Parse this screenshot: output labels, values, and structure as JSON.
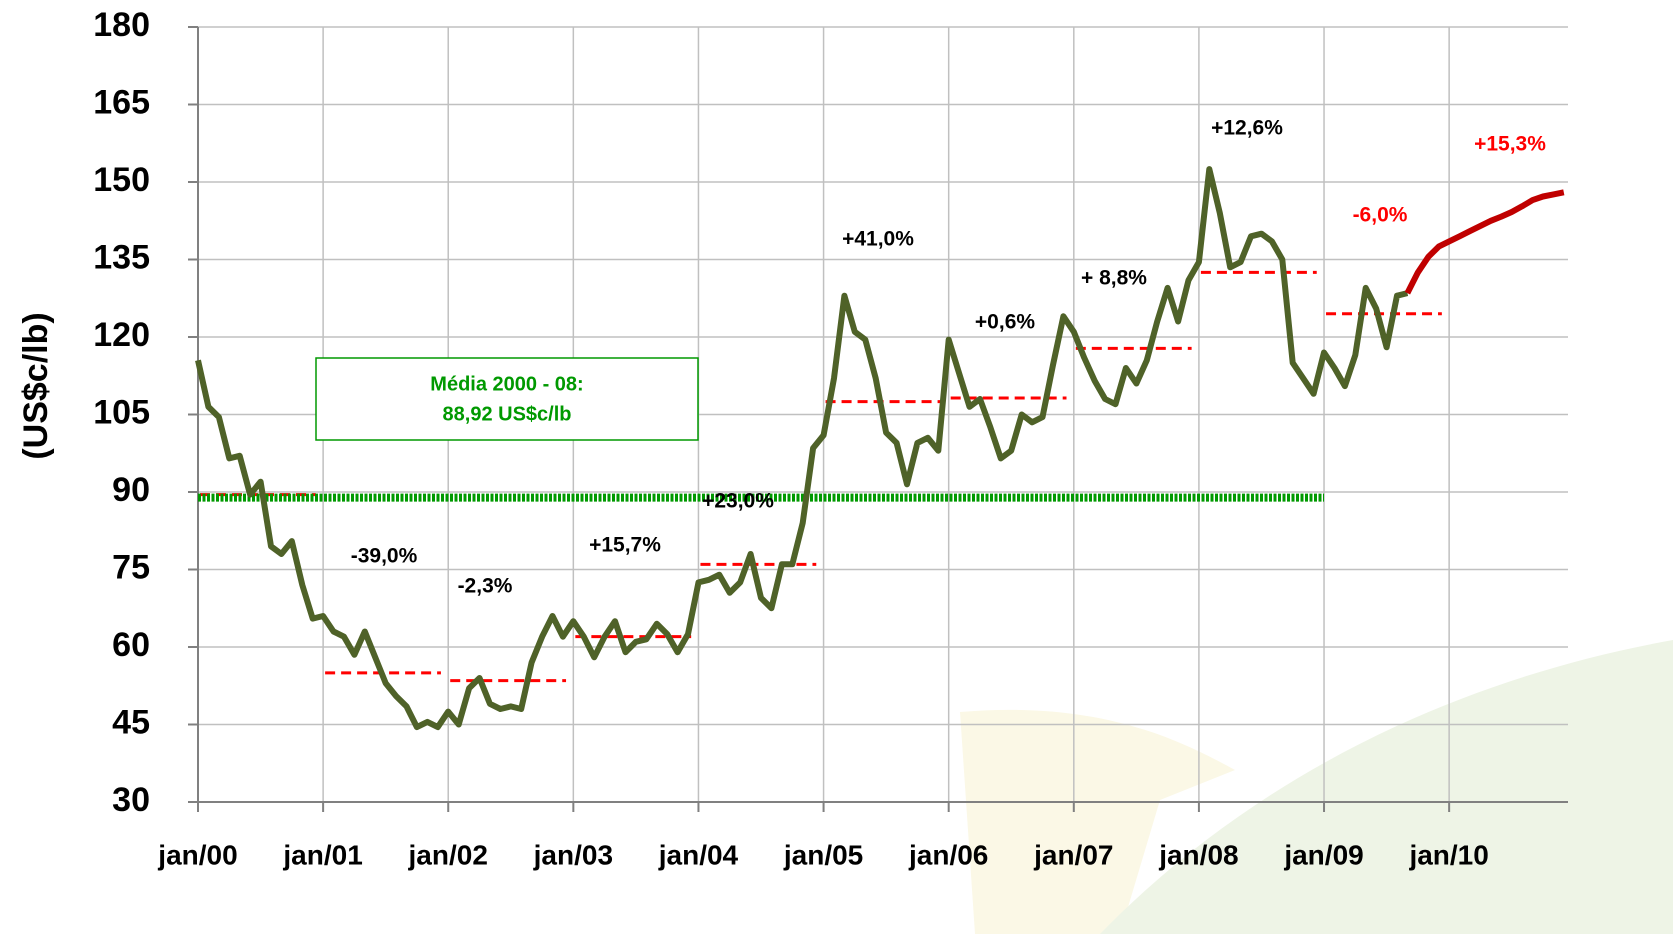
{
  "chart_data": {
    "type": "line",
    "y_label": "(US$c/lb)",
    "xlim": [
      0,
      131.4
    ],
    "ylim": [
      30,
      180
    ],
    "yticks": [
      30,
      45,
      60,
      75,
      90,
      105,
      120,
      135,
      150,
      165,
      180
    ],
    "xticks": [
      {
        "value": 0,
        "label": "jan/00"
      },
      {
        "value": 12,
        "label": "jan/01"
      },
      {
        "value": 24,
        "label": "jan/02"
      },
      {
        "value": 36,
        "label": "jan/03"
      },
      {
        "value": 48,
        "label": "jan/04"
      },
      {
        "value": 60,
        "label": "jan/05"
      },
      {
        "value": 72,
        "label": "jan/06"
      },
      {
        "value": 84,
        "label": "jan/07"
      },
      {
        "value": 96,
        "label": "jan/08"
      },
      {
        "value": 108,
        "label": "jan/09"
      },
      {
        "value": 120,
        "label": "jan/10"
      }
    ],
    "grid": true,
    "series": [
      {
        "color": "#4f6228",
        "x": [
          0,
          1,
          2,
          3,
          4,
          5,
          6,
          7,
          8,
          9,
          10,
          11,
          12,
          13,
          14,
          15,
          16,
          17,
          18,
          19,
          20,
          21,
          22,
          23,
          24,
          25,
          26,
          27,
          28,
          29,
          30,
          31,
          32,
          33,
          34,
          35,
          36,
          37,
          38,
          39,
          40,
          41,
          42,
          43,
          44,
          45,
          46,
          47,
          48,
          49,
          50,
          51,
          52,
          53,
          54,
          55,
          56,
          57,
          58,
          59,
          60,
          61,
          62,
          63,
          64,
          65,
          66,
          67,
          68,
          69,
          70,
          71,
          72,
          73,
          74,
          75,
          76,
          77,
          78,
          79,
          80,
          81,
          82,
          83,
          84,
          85,
          86,
          87,
          88,
          89,
          90,
          91,
          92,
          93,
          94,
          95,
          96,
          97,
          98,
          99,
          100,
          101,
          102,
          103,
          104,
          105,
          106,
          107,
          108,
          109,
          110,
          111,
          112,
          113,
          114,
          115,
          116
        ],
        "values": [
          115.5,
          106.5,
          104.5,
          96.5,
          97,
          89.5,
          92,
          79.5,
          78,
          80.5,
          72,
          65.5,
          66,
          63,
          62,
          58.5,
          63,
          58,
          53,
          50.5,
          48.5,
          44.5,
          45.5,
          44.5,
          47.5,
          45,
          52,
          54,
          49,
          48,
          48.5,
          48,
          57,
          62,
          66,
          62,
          65,
          62,
          58,
          62,
          65,
          59,
          61,
          61.5,
          64.5,
          62.5,
          59,
          62.5,
          72.5,
          73,
          74,
          70.5,
          72.5,
          78,
          69.5,
          67.5,
          76,
          76,
          84,
          98.5,
          101,
          112,
          128,
          121,
          119.5,
          112,
          101.5,
          99.5,
          91.5,
          99.5,
          100.5,
          98,
          119.5,
          113,
          106.5,
          108,
          102.5,
          96.5,
          98,
          105,
          103.5,
          104.5,
          114.5,
          124,
          121,
          116,
          111.5,
          108,
          107,
          114,
          111,
          115.5,
          123,
          129.5,
          123,
          131,
          134.5,
          152.5,
          144,
          133.5,
          134.5,
          139.5,
          140,
          138.5,
          135,
          115,
          112,
          109,
          117,
          114,
          110.5,
          116.5,
          129.5,
          125.5,
          118,
          128,
          128.5
        ]
      },
      {
        "color": "#c00000",
        "x": [
          116,
          117,
          118,
          119,
          120,
          121,
          122,
          123,
          124,
          125,
          126,
          127,
          128,
          129,
          130,
          131
        ],
        "values": [
          128.5,
          132.5,
          135.5,
          137.5,
          138.5,
          139.5,
          140.5,
          141.5,
          142.5,
          143.3,
          144.2,
          145.3,
          146.5,
          147.2,
          147.6,
          148
        ]
      }
    ],
    "annual_means": {
      "color": "#ff0000",
      "values": [
        89.5,
        55,
        53.5,
        62,
        76,
        107.5,
        108.2,
        117.8,
        132.5,
        124.5
      ]
    },
    "reference_line": {
      "value": 88.92,
      "color": "#009900",
      "label": [
        "Média 2000 - 08:",
        "88,92 US$c/lb"
      ]
    },
    "annotations": [
      {
        "text": "-39,0%",
        "color": "#000000"
      },
      {
        "text": "-2,3%",
        "color": "#000000"
      },
      {
        "text": "+15,7%",
        "color": "#000000"
      },
      {
        "text": "+23,0%",
        "color": "#000000"
      },
      {
        "text": "+41,0%",
        "color": "#000000"
      },
      {
        "text": "+0,6%",
        "color": "#000000"
      },
      {
        "text": "+ 8,8%",
        "color": "#000000"
      },
      {
        "text": "+12,6%",
        "color": "#000000"
      },
      {
        "text": "-6,0%",
        "color": "#ff0000"
      },
      {
        "text": "+15,3%",
        "color": "#ff0000"
      }
    ]
  }
}
